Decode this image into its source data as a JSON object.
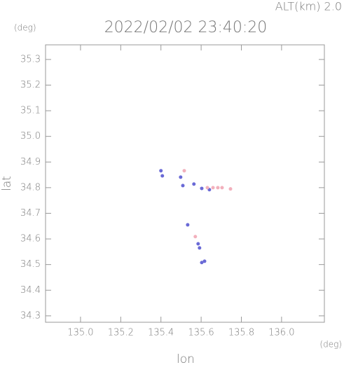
{
  "chart_data": {
    "type": "scatter",
    "title": "2022/02/02 23:40:20",
    "annotation": "ALT(km) 2.0",
    "y_unit": "(deg)",
    "x_unit": "(deg)",
    "xlabel": "lon",
    "ylabel": "lat",
    "xlim": [
      134.826,
      136.213
    ],
    "ylim": [
      34.275,
      35.357
    ],
    "xticks": [
      {
        "value": 135.0,
        "label": "135.0"
      },
      135.2,
      135.4,
      135.6,
      135.8,
      {
        "value": 136.0,
        "label": "136.0"
      }
    ],
    "yticks": [
      34.3,
      34.4,
      34.5,
      34.6,
      34.7,
      34.8,
      34.9,
      {
        "value": 35.0,
        "label": "35.0"
      },
      35.1,
      35.2,
      35.3
    ],
    "series": [
      {
        "color": "#6a6ad6",
        "x": [
          135.4,
          135.407,
          135.498,
          135.509,
          135.564,
          135.603,
          135.641,
          135.533,
          135.585,
          135.592,
          135.617,
          135.603
        ],
        "values": [
          34.866,
          34.846,
          34.841,
          34.808,
          34.814,
          34.797,
          34.792,
          34.655,
          34.581,
          34.565,
          34.513,
          34.508
        ]
      },
      {
        "color": "#f2b0bc",
        "x": [
          135.659,
          135.683,
          135.704,
          135.746,
          135.571,
          135.631,
          135.516
        ],
        "values": [
          34.8,
          34.8,
          34.8,
          34.795,
          34.609,
          34.8,
          34.866
        ]
      }
    ]
  }
}
